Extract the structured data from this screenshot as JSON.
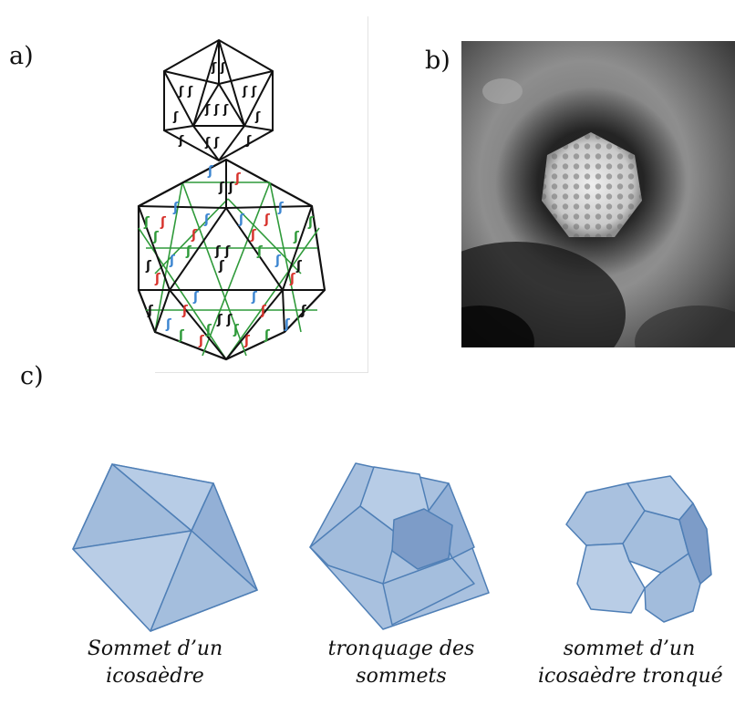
{
  "labels": {
    "a": "a)",
    "b": "b)",
    "c": "c)"
  },
  "captions": [
    {
      "line1": "Sommet d’un",
      "line2": "icosaèdre"
    },
    {
      "line1": "tronquage des",
      "line2": "sommets"
    },
    {
      "line1": "sommet d’un",
      "line2": "icosaèdre tronqué"
    }
  ],
  "colors": {
    "face_fill": "#a9c1df",
    "edge": "#4f7fb6",
    "dark_face": "#7d9cc8",
    "protein_green": "#2f9a3a",
    "protein_red": "#d7322c",
    "protein_blue": "#3d86d1"
  }
}
